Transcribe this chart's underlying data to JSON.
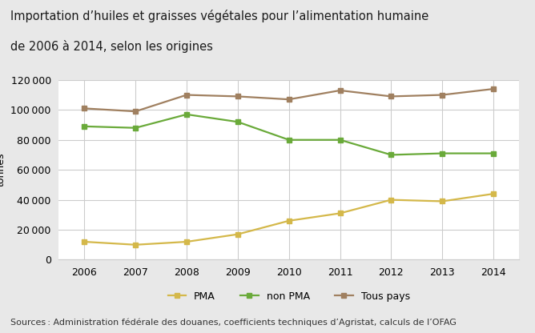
{
  "years": [
    2006,
    2007,
    2008,
    2009,
    2010,
    2011,
    2012,
    2013,
    2014
  ],
  "pma": [
    12000,
    10000,
    12000,
    17000,
    26000,
    31000,
    40000,
    39000,
    44000
  ],
  "non_pma": [
    89000,
    88000,
    97000,
    92000,
    80000,
    80000,
    70000,
    71000,
    71000
  ],
  "tous_pays": [
    101000,
    99000,
    110000,
    109000,
    107000,
    113000,
    109000,
    110000,
    114000
  ],
  "title_line1": "Importation d’huiles et graisses végétales pour l’alimentation humaine",
  "title_line2": "de 2006 à 2014, selon les origines",
  "ylabel": "tonnes",
  "source": "Sources : Administration fédérale des douanes, coefficients techniques d’Agristat, calculs de l’OFAG",
  "ylim": [
    0,
    120000
  ],
  "yticks": [
    0,
    20000,
    40000,
    60000,
    80000,
    100000,
    120000
  ],
  "color_pma": "#d4b84a",
  "color_non_pma": "#6aaa3a",
  "color_tous_pays": "#a08060",
  "marker": "s",
  "legend_pma": "PMA",
  "legend_non_pma": "non PMA",
  "legend_tous_pays": "Tous pays",
  "bg_color": "#e8e8e8",
  "plot_bg_color": "#ffffff",
  "title_fontsize": 10.5,
  "label_fontsize": 9,
  "tick_fontsize": 9,
  "source_fontsize": 8
}
